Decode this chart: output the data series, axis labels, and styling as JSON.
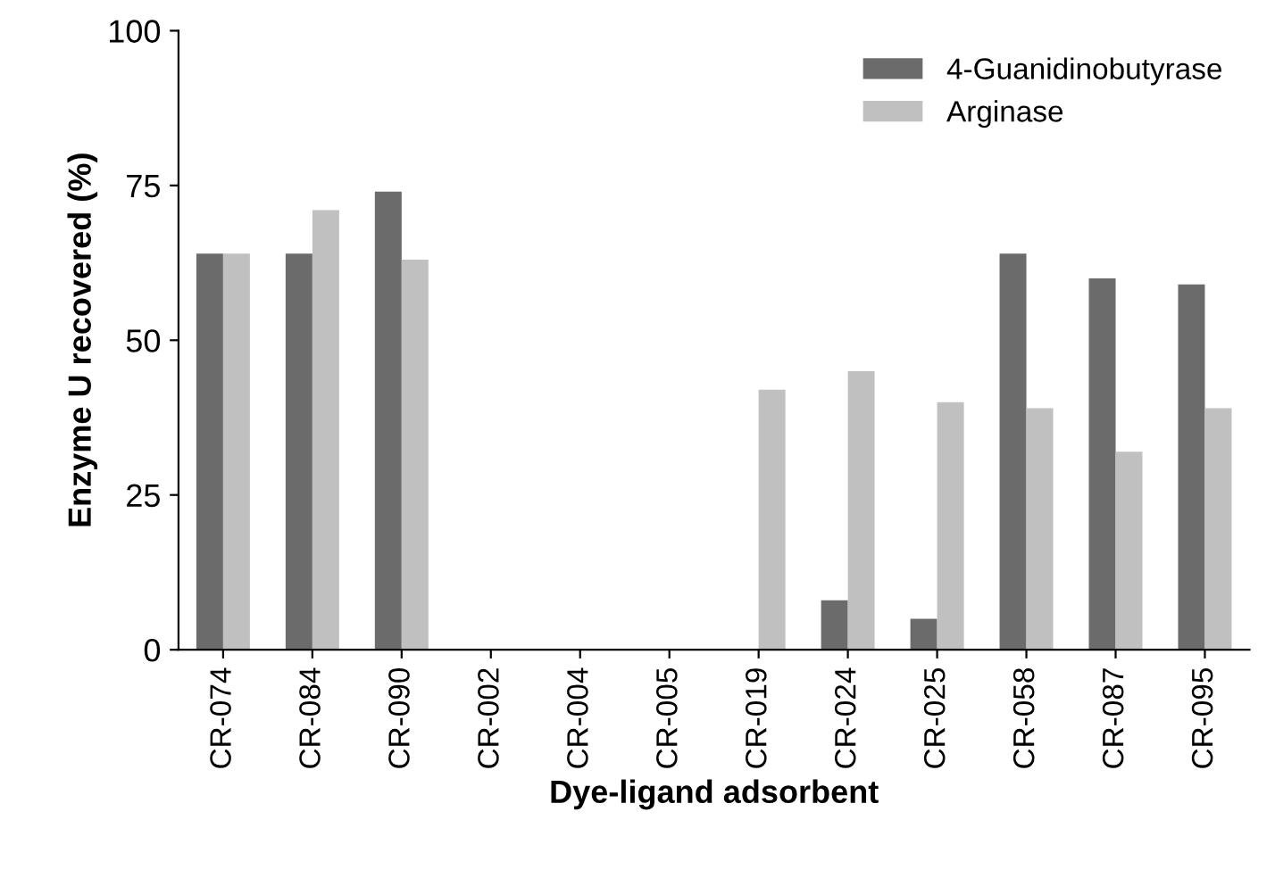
{
  "chart_data": {
    "type": "bar",
    "xlabel": "Dye-ligand adsorbent",
    "ylabel": "Enzyme U recovered (%)",
    "categories": [
      "CR-074",
      "CR-084",
      "CR-090",
      "CR-002",
      "CR-004",
      "CR-005",
      "CR-019",
      "CR-024",
      "CR-025",
      "CR-058",
      "CR-087",
      "CR-095"
    ],
    "series": [
      {
        "name": "4-Guanidinobutyrase",
        "color": "#6b6b6b",
        "values": [
          64,
          64,
          74,
          0,
          0,
          0,
          0,
          8,
          5,
          64,
          60,
          59
        ]
      },
      {
        "name": "Arginase",
        "color": "#c0c0c0",
        "values": [
          64,
          71,
          63,
          0,
          0,
          0,
          42,
          45,
          40,
          39,
          32,
          39
        ]
      }
    ],
    "ylim": [
      0,
      100
    ],
    "yticks": [
      0,
      25,
      50,
      75,
      100
    ],
    "grid": false,
    "legend": "top right"
  }
}
